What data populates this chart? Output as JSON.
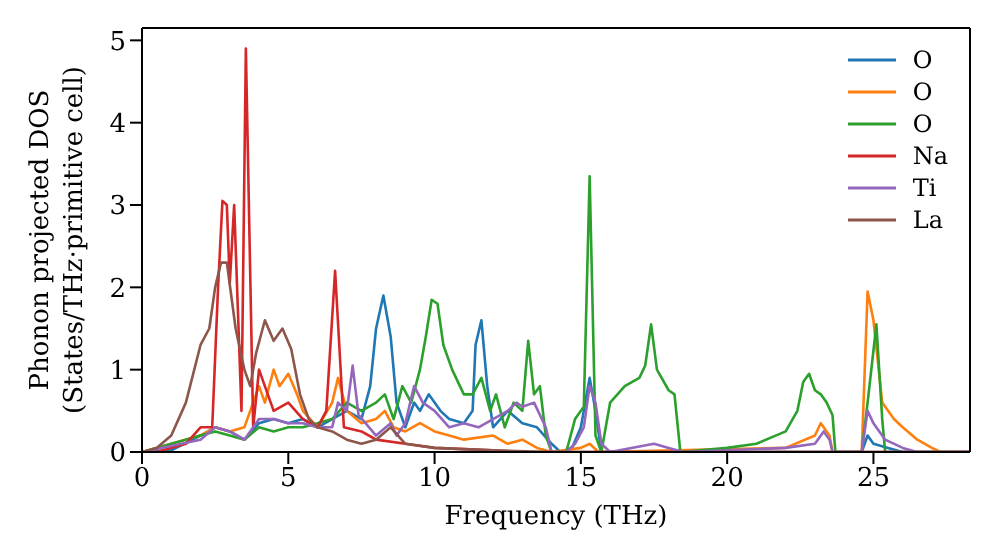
{
  "chart_data": {
    "type": "line",
    "xlabel": "Frequency (THz)",
    "ylabel": "Phonon projected DOS\n(States/THz·primitive cell)",
    "xlim": [
      0,
      28.3
    ],
    "xticks": [
      0,
      5,
      10,
      15,
      20,
      25
    ],
    "ylim": [
      0,
      5.15
    ],
    "yticks": [
      0,
      1,
      2,
      3,
      4,
      5
    ],
    "legend": "top right",
    "marker": "none",
    "line_style": "solid",
    "series": [
      {
        "name": "O",
        "color": "#1f77b4",
        "x": [
          0,
          1,
          2,
          2.5,
          3,
          3.5,
          4,
          4.5,
          5,
          5.5,
          6,
          6.5,
          7,
          7.5,
          7.8,
          8,
          8.25,
          8.5,
          8.7,
          9,
          9.3,
          9.5,
          9.8,
          10.2,
          10.5,
          11,
          11.3,
          11.4,
          11.6,
          11.8,
          12,
          12.5,
          13,
          13.5,
          14,
          14.3,
          14.7,
          15,
          15.3,
          15.5,
          15.7,
          24.6,
          24.8,
          25,
          25.5,
          26,
          28.3
        ],
        "values": [
          0,
          0.02,
          0.2,
          0.3,
          0.25,
          0.15,
          0.35,
          0.4,
          0.35,
          0.4,
          0.3,
          0.4,
          0.5,
          0.4,
          0.8,
          1.5,
          1.9,
          1.4,
          0.6,
          0.3,
          0.6,
          0.5,
          0.7,
          0.5,
          0.4,
          0.35,
          0.5,
          1.3,
          1.6,
          0.8,
          0.3,
          0.5,
          0.35,
          0.3,
          0.1,
          0,
          0.05,
          0.3,
          0.9,
          0.5,
          0,
          0,
          0.2,
          0.1,
          0.05,
          0,
          0
        ]
      },
      {
        "name": "O",
        "color": "#ff7f0e",
        "x": [
          0,
          2,
          2.5,
          3,
          3.5,
          3.8,
          4,
          4.2,
          4.5,
          4.7,
          5,
          5.3,
          5.5,
          6,
          6.5,
          6.7,
          7,
          7.5,
          8,
          8.3,
          8.6,
          9,
          9.5,
          10,
          10.5,
          11,
          12,
          12.5,
          13,
          13.5,
          14,
          15,
          15.3,
          15.6,
          22,
          23,
          23.2,
          23.5,
          23.6,
          24.6,
          24.8,
          25,
          25.3,
          25.7,
          26,
          26.5,
          27,
          27.3,
          28.3
        ],
        "values": [
          0,
          0.2,
          0.3,
          0.25,
          0.3,
          0.6,
          0.8,
          0.6,
          1,
          0.8,
          0.95,
          0.7,
          0.5,
          0.3,
          0.6,
          0.9,
          0.5,
          0.35,
          0.4,
          0.5,
          0.3,
          0.25,
          0.35,
          0.25,
          0.2,
          0.15,
          0.2,
          0.1,
          0.15,
          0.05,
          0,
          0.05,
          0.1,
          0,
          0.05,
          0.2,
          0.35,
          0.2,
          0,
          0,
          1.95,
          1.6,
          0.6,
          0.4,
          0.3,
          0.15,
          0.05,
          0,
          0
        ]
      },
      {
        "name": "O",
        "color": "#2ca02c",
        "x": [
          0,
          2,
          2.5,
          3,
          3.5,
          4,
          4.5,
          5,
          5.5,
          6,
          6.5,
          7,
          7.5,
          8,
          8.3,
          8.6,
          8.9,
          9.2,
          9.5,
          9.7,
          9.9,
          10.1,
          10.3,
          10.6,
          11,
          11.3,
          11.6,
          11.9,
          12.1,
          12.4,
          12.7,
          13,
          13.2,
          13.4,
          13.6,
          13.8,
          14,
          14.5,
          14.8,
          15.1,
          15.3,
          15.5,
          15.7,
          16,
          16.5,
          17,
          17.2,
          17.4,
          17.6,
          18,
          18.2,
          18.4,
          20,
          21,
          22,
          22.4,
          22.6,
          22.8,
          23,
          23.2,
          23.4,
          23.6,
          23.7,
          24.6,
          24.8,
          25.1,
          25.3,
          25.4,
          28.3
        ],
        "values": [
          0,
          0.2,
          0.25,
          0.2,
          0.15,
          0.3,
          0.25,
          0.3,
          0.3,
          0.35,
          0.4,
          0.6,
          0.5,
          0.6,
          0.7,
          0.4,
          0.8,
          0.6,
          1,
          1.4,
          1.85,
          1.8,
          1.3,
          1,
          0.7,
          0.7,
          0.9,
          0.5,
          0.7,
          0.3,
          0.6,
          0.5,
          1.35,
          0.7,
          0.8,
          0.2,
          0,
          0,
          0.4,
          0.55,
          3.35,
          0.2,
          0,
          0.6,
          0.8,
          0.9,
          1.05,
          1.55,
          1,
          0.75,
          0.7,
          0,
          0.05,
          0.1,
          0.25,
          0.5,
          0.85,
          0.95,
          0.75,
          0.7,
          0.6,
          0.45,
          0,
          0,
          0.6,
          1.55,
          0.4,
          0,
          0
        ]
      },
      {
        "name": "Na",
        "color": "#d62728",
        "x": [
          0,
          0.5,
          1.5,
          2,
          2.4,
          2.6,
          2.75,
          2.9,
          3,
          3.15,
          3.4,
          3.55,
          3.8,
          4,
          4.5,
          5,
          5.5,
          6,
          6.3,
          6.6,
          6.9,
          7.5,
          8,
          9,
          10,
          12,
          13,
          28.3
        ],
        "values": [
          0,
          0,
          0.1,
          0.3,
          0.3,
          2,
          3.05,
          3,
          2.05,
          3,
          0.5,
          4.9,
          0.3,
          1,
          0.5,
          0.6,
          0.4,
          0.3,
          0.5,
          2.2,
          0.3,
          0.25,
          0.15,
          0.1,
          0.05,
          0.02,
          0,
          0
        ]
      },
      {
        "name": "Ti",
        "color": "#9467bd",
        "x": [
          0,
          2,
          2.5,
          3,
          3.5,
          4,
          4.5,
          5,
          5.5,
          6,
          6.5,
          6.7,
          7,
          7.2,
          7.4,
          8,
          8.5,
          8.7,
          9,
          9.3,
          9.6,
          10,
          10.5,
          11,
          11.5,
          12,
          12.5,
          12.8,
          13,
          13.4,
          13.8,
          14,
          14.5,
          14.8,
          15.1,
          15.3,
          15.5,
          15.7,
          16,
          17.5,
          18,
          18.5,
          22,
          23,
          23.3,
          23.5,
          23.6,
          24.6,
          24.8,
          25,
          25.4,
          26,
          26.5,
          28.3
        ],
        "values": [
          0,
          0.15,
          0.3,
          0.25,
          0.15,
          0.4,
          0.4,
          0.35,
          0.35,
          0.3,
          0.3,
          0.6,
          0.5,
          1.05,
          0.45,
          0.2,
          0.35,
          0.2,
          0.35,
          0.8,
          0.6,
          0.5,
          0.3,
          0.35,
          0.3,
          0.4,
          0.5,
          0.6,
          0.55,
          0.6,
          0.3,
          0,
          0,
          0.1,
          0.3,
          0.8,
          0.6,
          0.1,
          0,
          0.1,
          0.05,
          0,
          0.05,
          0.1,
          0.25,
          0.15,
          0,
          0,
          0.5,
          0.35,
          0.15,
          0.05,
          0,
          0
        ]
      },
      {
        "name": "La",
        "color": "#8c564b",
        "x": [
          0,
          0.5,
          1,
          1.5,
          2,
          2.3,
          2.5,
          2.7,
          2.9,
          3.2,
          3.5,
          3.7,
          3.9,
          4.2,
          4.5,
          4.8,
          5.1,
          5.4,
          5.7,
          6,
          6.5,
          7,
          7.5,
          8,
          8.5,
          9,
          10,
          12,
          14,
          28.3
        ],
        "values": [
          0,
          0.05,
          0.2,
          0.6,
          1.3,
          1.5,
          2,
          2.3,
          2.3,
          1.5,
          1,
          0.8,
          1.2,
          1.6,
          1.35,
          1.5,
          1.25,
          0.7,
          0.4,
          0.3,
          0.25,
          0.15,
          0.1,
          0.15,
          0.3,
          0.1,
          0.05,
          0.02,
          0,
          0
        ]
      }
    ]
  }
}
